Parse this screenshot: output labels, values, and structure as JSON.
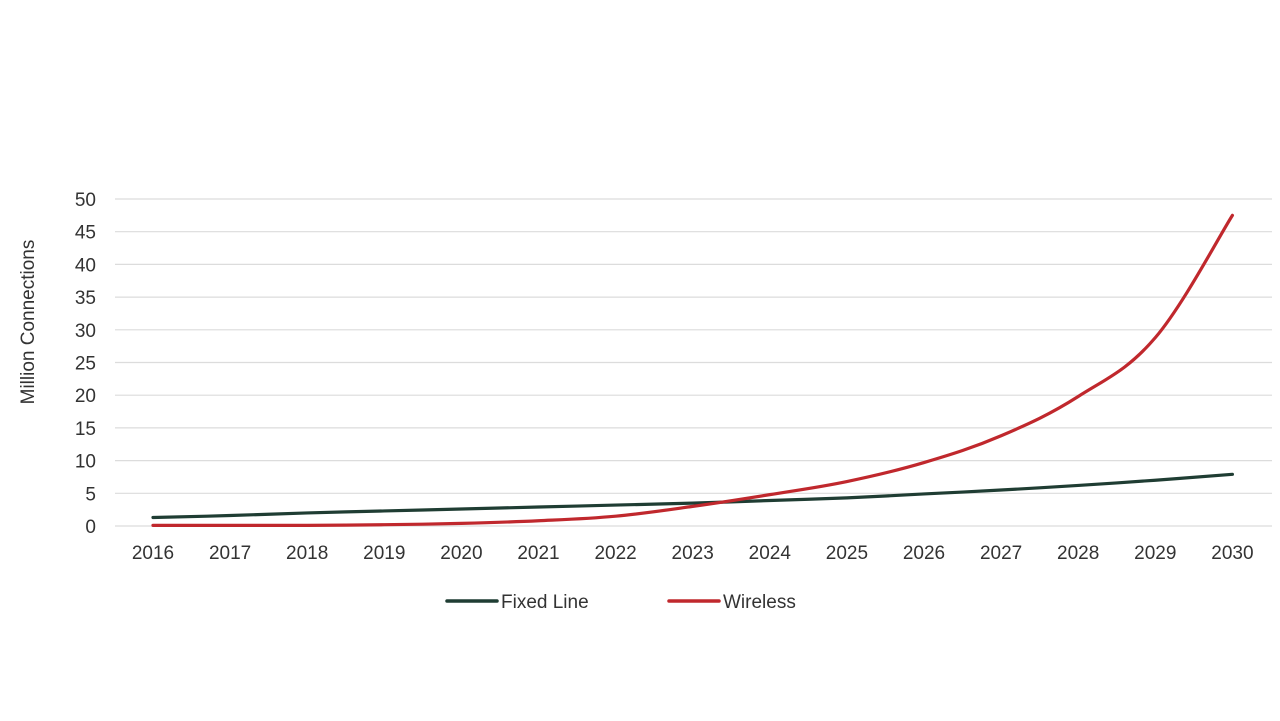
{
  "chart_data": {
    "type": "line",
    "title": "",
    "xlabel": "",
    "ylabel": "Million Connections",
    "categories": [
      "2016",
      "2017",
      "2018",
      "2019",
      "2020",
      "2021",
      "2022",
      "2023",
      "2024",
      "2025",
      "2026",
      "2027",
      "2028",
      "2029",
      "2030"
    ],
    "yticks": [
      "0",
      "5",
      "10",
      "15",
      "20",
      "25",
      "30",
      "35",
      "40",
      "45",
      "50"
    ],
    "ylim": [
      0,
      50
    ],
    "grid": true,
    "legend_position": "bottom",
    "series": [
      {
        "name": "Fixed Line",
        "color": "#1f3d33",
        "values": [
          1.3,
          1.6,
          2.0,
          2.3,
          2.6,
          2.9,
          3.2,
          3.5,
          3.9,
          4.3,
          4.9,
          5.5,
          6.2,
          7.0,
          7.9
        ]
      },
      {
        "name": "Wireless",
        "color": "#c0282d",
        "values": [
          0.1,
          0.1,
          0.1,
          0.2,
          0.4,
          0.8,
          1.5,
          3.0,
          4.8,
          6.8,
          9.7,
          13.8,
          19.8,
          28.8,
          47.5
        ]
      }
    ]
  }
}
